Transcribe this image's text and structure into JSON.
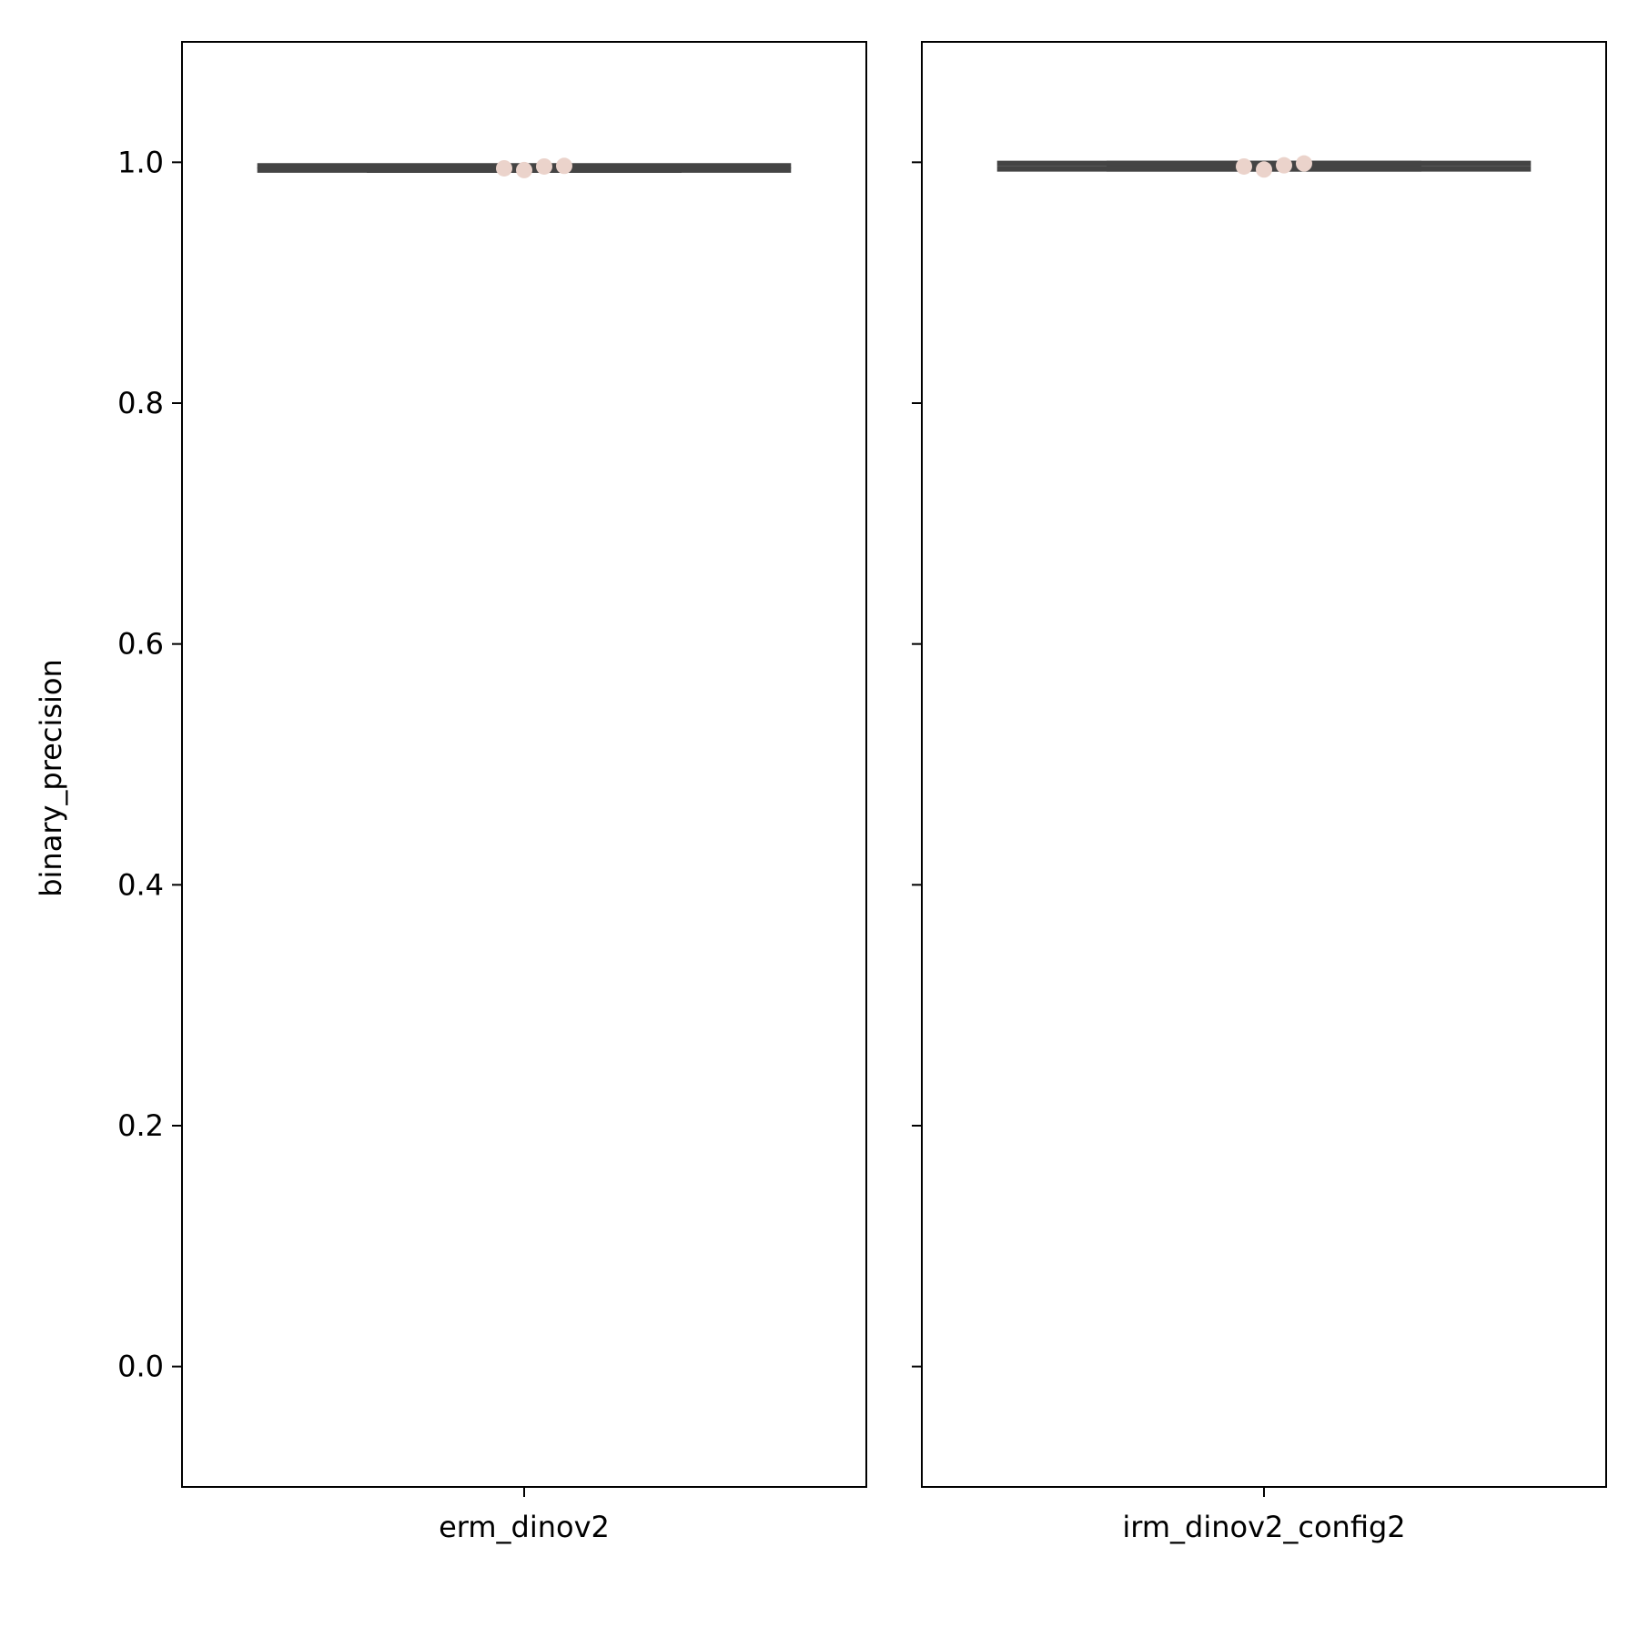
{
  "chart_data": {
    "type": "box",
    "ylabel": "binary_precision",
    "ylim": [
      -0.1,
      1.1
    ],
    "yticks": [
      0.0,
      0.2,
      0.4,
      0.6,
      0.8,
      1.0
    ],
    "ytick_labels": [
      "0.0",
      "0.2",
      "0.4",
      "0.6",
      "0.8",
      "1.0"
    ],
    "grid": false,
    "box_color": "#444444",
    "point_color": "#ebd3cb",
    "panels": [
      {
        "category": "erm_dinov2",
        "box": {
          "whisker_low": 0.9935,
          "q1": 0.9935,
          "median": 0.995,
          "q3": 0.9955,
          "whisker_high": 0.997
        },
        "points": [
          0.995,
          0.9935,
          0.9965,
          0.997
        ]
      },
      {
        "category": "irm_dinov2_config2",
        "box": {
          "whisker_low": 0.9945,
          "q1": 0.9945,
          "median": 0.9965,
          "q3": 0.999,
          "whisker_high": 0.999
        },
        "points": [
          0.9965,
          0.994,
          0.9975,
          0.999
        ]
      }
    ]
  }
}
